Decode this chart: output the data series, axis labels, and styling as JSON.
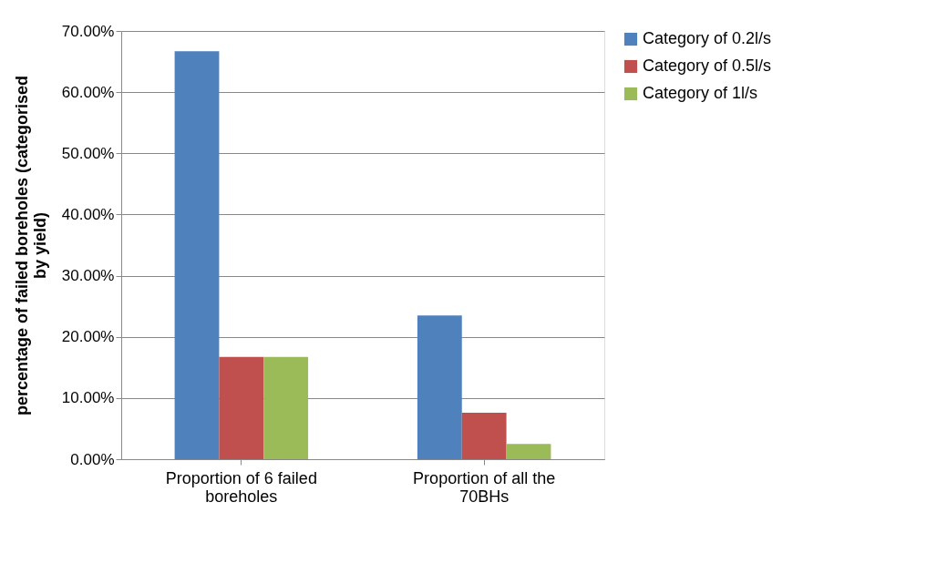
{
  "chart_data": {
    "type": "bar",
    "ylabel": "percentage of failed boreholes (categorised by yield)",
    "categories": [
      "Proportion of 6 failed boreholes",
      "Proportion of all the 70BHs"
    ],
    "series": [
      {
        "name": "Category of 0.2l/s",
        "color": "#4f81bd",
        "values": [
          66.7,
          23.5
        ]
      },
      {
        "name": "Category of 0.5l/s",
        "color": "#c0504d",
        "values": [
          16.7,
          7.6
        ]
      },
      {
        "name": "Category of 1l/s",
        "color": "#9bbb59",
        "values": [
          16.7,
          2.5
        ]
      }
    ],
    "ylim": [
      0,
      70
    ],
    "yticks": [
      {
        "value": 0,
        "label": "0.00%"
      },
      {
        "value": 10,
        "label": "10.00%"
      },
      {
        "value": 20,
        "label": "20.00%"
      },
      {
        "value": 30,
        "label": "30.00%"
      },
      {
        "value": 40,
        "label": "40.00%"
      },
      {
        "value": 50,
        "label": "50.00%"
      },
      {
        "value": 60,
        "label": "60.00%"
      },
      {
        "value": 70,
        "label": "70.00%"
      }
    ],
    "grid": "y",
    "legend": "right"
  }
}
